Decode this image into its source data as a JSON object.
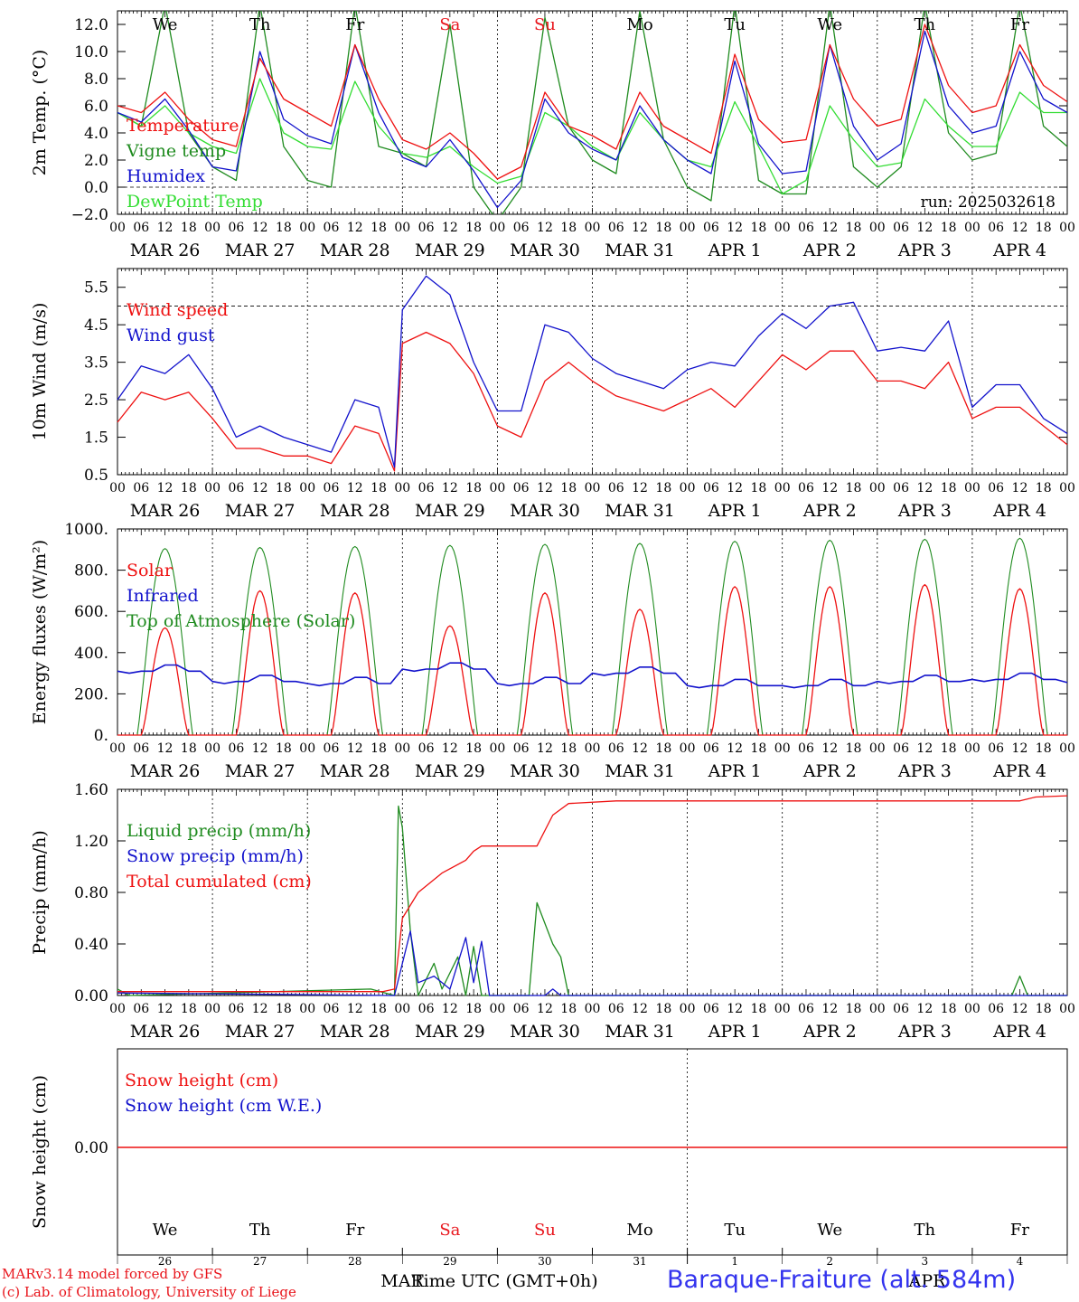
{
  "run_label": "run: 2025032618",
  "footer": {
    "model_line": "MARv3.14 model forced by GFS",
    "lab_line": "(c) Lab. of Climatology, University of Liege",
    "time_axis_title": "Time UTC (GMT+0h)",
    "station": "Baraque-Fraiture (alt. 584m)",
    "month_left": "MAR",
    "month_right": "APR"
  },
  "hour_ticks": [
    "00",
    "06",
    "12",
    "18"
  ],
  "day_labels": [
    "MAR 26",
    "MAR 27",
    "MAR 28",
    "MAR 29",
    "MAR 30",
    "MAR 31",
    "APR  1",
    "APR  2",
    "APR  3",
    "APR  4"
  ],
  "weekday_labels": [
    "We",
    "Th",
    "Fr",
    "Sa",
    "Su",
    "Mo",
    "Tu",
    "We",
    "Th",
    "Fr"
  ],
  "weekend_days": [
    3,
    4
  ],
  "bottom_day_numbers": [
    "26",
    "27",
    "28",
    "29",
    "30",
    "31",
    "1",
    "2",
    "3",
    "4"
  ],
  "colors": {
    "red": "#ee1111",
    "green": "#1f8b1f",
    "blue": "#1212cc",
    "light_green": "#33dd33",
    "weekend": "#e8141b",
    "station": "#3333ee"
  },
  "chart_data": [
    {
      "type": "line",
      "ylabel": "2m Temp. (°C)",
      "ylim": [
        -2,
        13
      ],
      "yticks": [
        "−2.0",
        "0.0",
        "2.0",
        "4.0",
        "6.0",
        "8.0",
        "10.0",
        "12.0"
      ],
      "ytick_values": [
        -2,
        0,
        2,
        4,
        6,
        8,
        10,
        12
      ],
      "reference_line": 0,
      "x_hours": [
        0,
        6,
        12,
        18,
        24,
        30,
        36,
        42,
        48,
        54,
        60,
        66,
        72,
        78,
        84,
        90,
        96,
        102,
        108,
        114,
        120,
        126,
        132,
        138,
        144,
        150,
        156,
        162,
        168,
        174,
        180,
        186,
        192,
        198,
        204,
        210,
        216,
        222,
        228,
        234,
        240
      ],
      "series": [
        {
          "name": "Temperature",
          "color": "#ee1111",
          "values": [
            6.0,
            5.5,
            7.0,
            5.0,
            3.5,
            3.0,
            9.5,
            6.5,
            5.5,
            4.5,
            10.5,
            6.5,
            3.5,
            2.8,
            4.0,
            2.5,
            0.6,
            1.5,
            7.0,
            4.5,
            3.8,
            2.8,
            7.0,
            4.5,
            3.5,
            2.5,
            9.8,
            5.0,
            3.3,
            3.5,
            10.5,
            6.5,
            4.5,
            5.0,
            12.0,
            7.5,
            5.5,
            6.0,
            10.5,
            7.5,
            6.3
          ]
        },
        {
          "name": "Vigne temp",
          "color": "#1f8b1f",
          "values": [
            5.5,
            4.5,
            13.5,
            4.0,
            1.5,
            0.5,
            13.5,
            3.0,
            0.5,
            0.0,
            13.5,
            3.0,
            2.5,
            1.5,
            12.0,
            0.0,
            -2.5,
            0.0,
            12.5,
            4.5,
            2.0,
            1.0,
            13.0,
            3.5,
            0.0,
            -1.0,
            13.5,
            0.5,
            -0.5,
            -0.5,
            13.5,
            1.5,
            0.0,
            1.5,
            13.5,
            4.0,
            2.0,
            2.5,
            13.5,
            4.5,
            3.0
          ]
        },
        {
          "name": "Humidex",
          "color": "#1212cc",
          "values": [
            5.5,
            4.8,
            6.5,
            4.2,
            1.5,
            1.2,
            10.0,
            5.0,
            3.8,
            3.2,
            10.5,
            5.5,
            2.2,
            1.5,
            3.5,
            1.2,
            -1.5,
            0.5,
            6.5,
            4.0,
            2.8,
            2.0,
            6.0,
            3.5,
            2.0,
            1.0,
            9.3,
            3.2,
            1.0,
            1.2,
            10.5,
            4.5,
            2.0,
            3.2,
            11.5,
            6.0,
            4.0,
            4.5,
            10.0,
            6.5,
            5.5
          ]
        },
        {
          "name": "DewPoint Temp",
          "color": "#33dd33",
          "values": [
            5.5,
            4.5,
            6.0,
            4.0,
            3.0,
            2.5,
            8.0,
            4.0,
            3.0,
            2.8,
            7.8,
            4.5,
            2.5,
            2.2,
            3.0,
            1.5,
            0.3,
            0.8,
            5.5,
            4.5,
            3.0,
            2.0,
            5.5,
            3.5,
            2.0,
            1.5,
            6.3,
            3.0,
            -0.5,
            0.5,
            6.0,
            3.5,
            1.5,
            1.8,
            6.5,
            4.5,
            3.0,
            3.0,
            7.0,
            5.5,
            5.5
          ]
        }
      ]
    },
    {
      "type": "line",
      "ylabel": "10m Wind (m/s)",
      "ylim": [
        0.5,
        6.0
      ],
      "yticks": [
        "0.5",
        "1.5",
        "2.5",
        "3.5",
        "4.5",
        "5.5"
      ],
      "ytick_values": [
        0.5,
        1.5,
        2.5,
        3.5,
        4.5,
        5.5
      ],
      "reference_line": 5.0,
      "x_hours": [
        0,
        6,
        12,
        18,
        24,
        30,
        36,
        42,
        48,
        54,
        60,
        66,
        70,
        72,
        78,
        84,
        90,
        96,
        102,
        108,
        114,
        120,
        126,
        132,
        138,
        144,
        150,
        156,
        162,
        168,
        174,
        180,
        186,
        192,
        198,
        204,
        210,
        216,
        222,
        228,
        234,
        240
      ],
      "series": [
        {
          "name": "Wind speed",
          "color": "#ee1111",
          "values": [
            1.9,
            2.7,
            2.5,
            2.7,
            2.0,
            1.2,
            1.2,
            1.0,
            1.0,
            0.8,
            1.8,
            1.6,
            0.6,
            4.0,
            4.3,
            4.0,
            3.2,
            1.8,
            1.5,
            3.0,
            3.5,
            3.0,
            2.6,
            2.4,
            2.2,
            2.5,
            2.8,
            2.3,
            3.0,
            3.7,
            3.3,
            3.8,
            3.8,
            3.0,
            3.0,
            2.8,
            3.5,
            2.0,
            2.3,
            2.3,
            1.8,
            1.3
          ]
        },
        {
          "name": "Wind gust",
          "color": "#1212cc",
          "values": [
            2.5,
            3.4,
            3.2,
            3.7,
            2.8,
            1.5,
            1.8,
            1.5,
            1.3,
            1.1,
            2.5,
            2.3,
            0.7,
            4.9,
            5.8,
            5.3,
            3.5,
            2.2,
            2.2,
            4.5,
            4.3,
            3.6,
            3.2,
            3.0,
            2.8,
            3.3,
            3.5,
            3.4,
            4.2,
            4.8,
            4.4,
            5.0,
            5.1,
            3.8,
            3.9,
            3.8,
            4.6,
            2.3,
            2.9,
            2.9,
            2.0,
            1.6
          ]
        }
      ]
    },
    {
      "type": "line",
      "ylabel": "Energy fluxes (W/m²)",
      "ylim": [
        0,
        1000
      ],
      "yticks": [
        "0.",
        "200.",
        "400.",
        "600.",
        "800.",
        "1000."
      ],
      "ytick_values": [
        0,
        200,
        400,
        600,
        800,
        1000
      ],
      "series": [
        {
          "name": "Solar",
          "color": "#ee1111",
          "daily_peak": [
            520,
            700,
            690,
            530,
            690,
            610,
            720,
            720,
            730,
            710
          ]
        },
        {
          "name": "Infrared",
          "color": "#1212cc",
          "daily_mean": [
            310,
            260,
            250,
            320,
            250,
            300,
            240,
            240,
            260,
            270
          ]
        },
        {
          "name": "Top of Atmosphere (Solar)",
          "color": "#1f8b1f",
          "daily_peak": [
            905,
            910,
            915,
            920,
            925,
            930,
            940,
            945,
            950,
            955
          ]
        }
      ]
    },
    {
      "type": "line",
      "ylabel": "Precip (mm/h)",
      "ylim": [
        0,
        1.6
      ],
      "yticks": [
        "0.00",
        "0.40",
        "0.80",
        "1.20",
        "1.60"
      ],
      "ytick_values": [
        0,
        0.4,
        0.8,
        1.2,
        1.6
      ],
      "series": [
        {
          "name": "Liquid precip (mm/h)",
          "color": "#1f8b1f",
          "points": [
            [
              0,
              0.05
            ],
            [
              3,
              0.0
            ],
            [
              64,
              0.05
            ],
            [
              70,
              0.0
            ],
            [
              71,
              1.47
            ],
            [
              72,
              1.3
            ],
            [
              74,
              0.5
            ],
            [
              76,
              0.0
            ],
            [
              80,
              0.25
            ],
            [
              82,
              0.05
            ],
            [
              86,
              0.3
            ],
            [
              88,
              0.0
            ],
            [
              90,
              0.38
            ],
            [
              92,
              0.0
            ],
            [
              104,
              0.0
            ],
            [
              106,
              0.72
            ],
            [
              110,
              0.4
            ],
            [
              112,
              0.3
            ],
            [
              114,
              0.0
            ],
            [
              226,
              0.0
            ],
            [
              228,
              0.15
            ],
            [
              230,
              0.0
            ]
          ]
        },
        {
          "name": "Snow precip (mm/h)",
          "color": "#1212cc",
          "points": [
            [
              0,
              0.02
            ],
            [
              70,
              0.0
            ],
            [
              74,
              0.5
            ],
            [
              76,
              0.1
            ],
            [
              80,
              0.15
            ],
            [
              84,
              0.05
            ],
            [
              88,
              0.45
            ],
            [
              90,
              0.1
            ],
            [
              92,
              0.42
            ],
            [
              94,
              0.0
            ],
            [
              108,
              0.0
            ],
            [
              110,
              0.05
            ],
            [
              112,
              0.0
            ]
          ]
        },
        {
          "name": "Total cumulated (cm)",
          "color": "#ee1111",
          "points": [
            [
              0,
              0.03
            ],
            [
              67,
              0.03
            ],
            [
              70,
              0.05
            ],
            [
              72,
              0.6
            ],
            [
              76,
              0.8
            ],
            [
              82,
              0.95
            ],
            [
              88,
              1.05
            ],
            [
              90,
              1.12
            ],
            [
              92,
              1.16
            ],
            [
              106,
              1.16
            ],
            [
              110,
              1.4
            ],
            [
              114,
              1.49
            ],
            [
              126,
              1.51
            ],
            [
              228,
              1.51
            ],
            [
              232,
              1.54
            ],
            [
              240,
              1.55
            ]
          ]
        }
      ]
    },
    {
      "type": "line",
      "ylabel": "Snow height (cm)",
      "yticks": [
        "0.00"
      ],
      "series": [
        {
          "name": "Snow height (cm)",
          "color": "#ee1111",
          "values": [
            0,
            0
          ]
        },
        {
          "name": "Snow height (cm W.E.)",
          "color": "#1212cc",
          "values": [
            0,
            0
          ]
        }
      ]
    }
  ]
}
